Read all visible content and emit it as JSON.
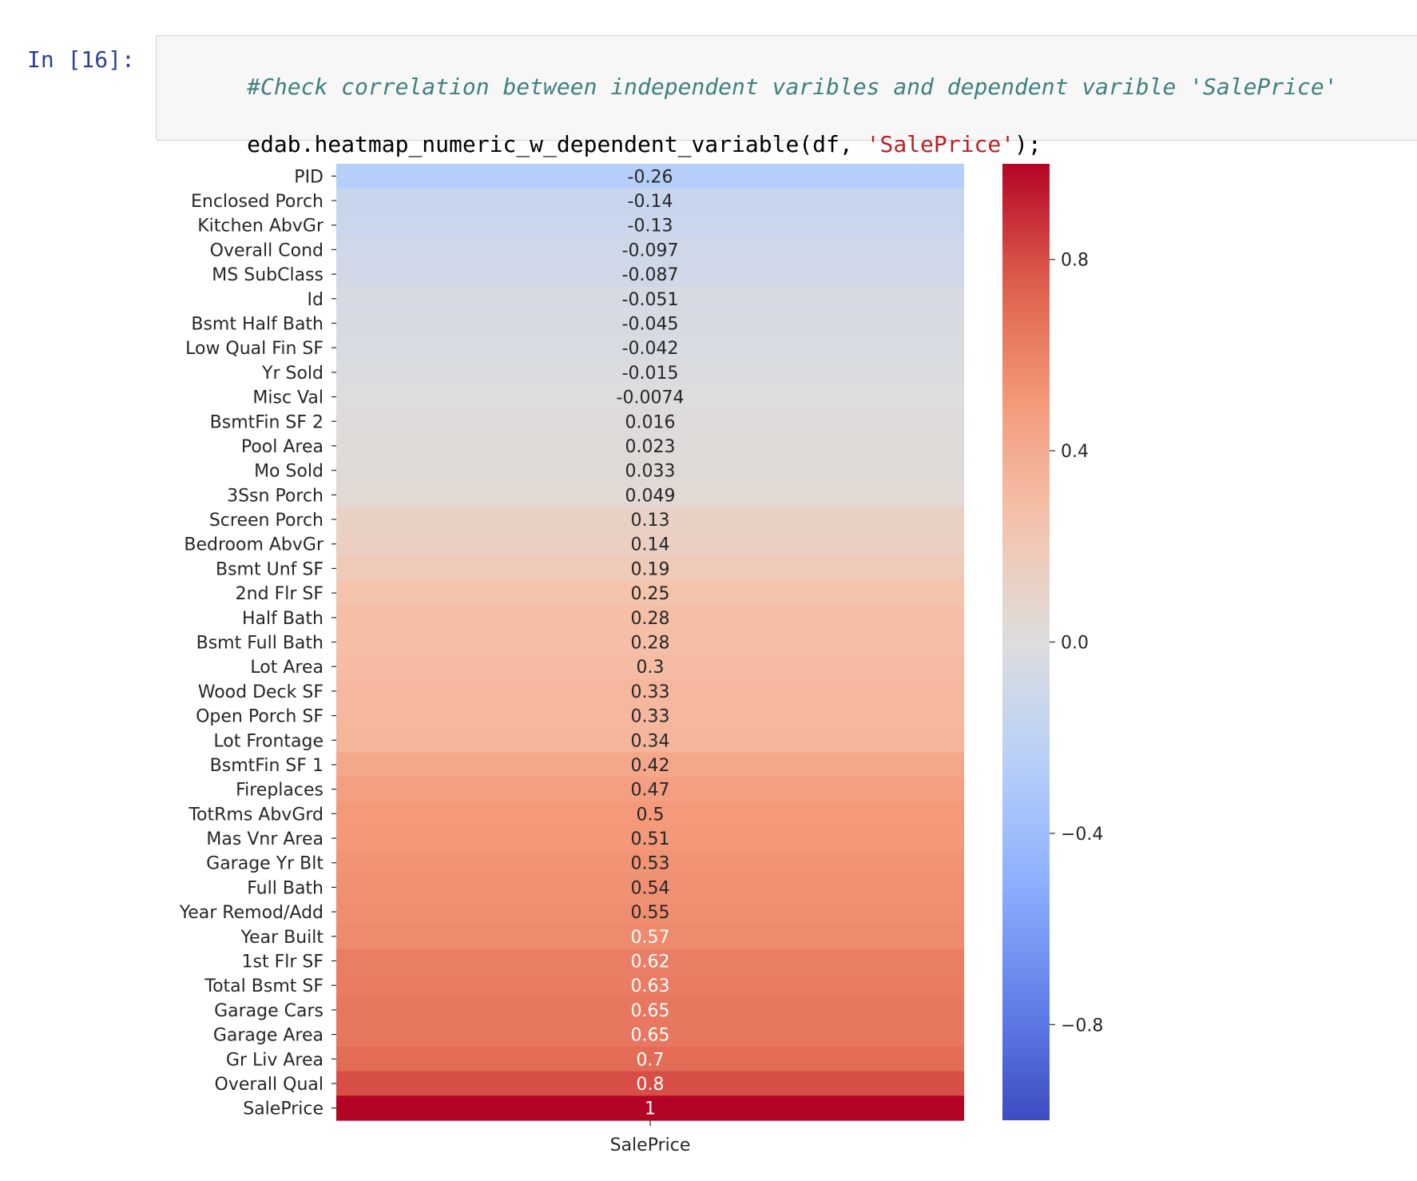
{
  "cell": {
    "prompt": "In [16]:",
    "comment": "#Check correlation between independent varibles and dependent varible 'SalePrice'",
    "code_before": "edab.heatmap_numeric_w_dependent_variable(df, ",
    "code_string": "'SalePrice'",
    "code_after": ");"
  },
  "chart_data": {
    "type": "heatmap",
    "xlabel": "SalePrice",
    "columns": [
      "SalePrice"
    ],
    "rows": [
      "PID",
      "Enclosed Porch",
      "Kitchen AbvGr",
      "Overall Cond",
      "MS SubClass",
      "Id",
      "Bsmt Half Bath",
      "Low Qual Fin SF",
      "Yr Sold",
      "Misc Val",
      "BsmtFin SF 2",
      "Pool Area",
      "Mo Sold",
      "3Ssn Porch",
      "Screen Porch",
      "Bedroom AbvGr",
      "Bsmt Unf SF",
      "2nd Flr SF",
      "Half Bath",
      "Bsmt Full Bath",
      "Lot Area",
      "Wood Deck SF",
      "Open Porch SF",
      "Lot Frontage",
      "BsmtFin SF 1",
      "Fireplaces",
      "TotRms AbvGrd",
      "Mas Vnr Area",
      "Garage Yr Blt",
      "Full Bath",
      "Year Remod/Add",
      "Year Built",
      "1st Flr SF",
      "Total Bsmt SF",
      "Garage Cars",
      "Garage Area",
      "Gr Liv Area",
      "Overall Qual",
      "SalePrice"
    ],
    "values": [
      -0.26,
      -0.14,
      -0.13,
      -0.097,
      -0.087,
      -0.051,
      -0.045,
      -0.042,
      -0.015,
      -0.0074,
      0.016,
      0.023,
      0.033,
      0.049,
      0.13,
      0.14,
      0.19,
      0.25,
      0.28,
      0.28,
      0.3,
      0.33,
      0.33,
      0.34,
      0.42,
      0.47,
      0.5,
      0.51,
      0.53,
      0.54,
      0.55,
      0.57,
      0.62,
      0.63,
      0.65,
      0.65,
      0.7,
      0.8,
      1
    ],
    "annotations": [
      "-0.26",
      "-0.14",
      "-0.13",
      "-0.097",
      "-0.087",
      "-0.051",
      "-0.045",
      "-0.042",
      "-0.015",
      "-0.0074",
      "0.016",
      "0.023",
      "0.033",
      "0.049",
      "0.13",
      "0.14",
      "0.19",
      "0.25",
      "0.28",
      "0.28",
      "0.3",
      "0.33",
      "0.33",
      "0.34",
      "0.42",
      "0.47",
      "0.5",
      "0.51",
      "0.53",
      "0.54",
      "0.55",
      "0.57",
      "0.62",
      "0.63",
      "0.65",
      "0.65",
      "0.7",
      "0.8",
      "1"
    ],
    "colormap": "coolwarm",
    "vmin": -1,
    "vmax": 1,
    "colorbar_ticks": [
      0.8,
      0.4,
      0.0,
      -0.4,
      -0.8
    ],
    "colorbar_tick_labels": [
      "0.8",
      "0.4",
      "0.0",
      "−0.4",
      "−0.8"
    ]
  }
}
